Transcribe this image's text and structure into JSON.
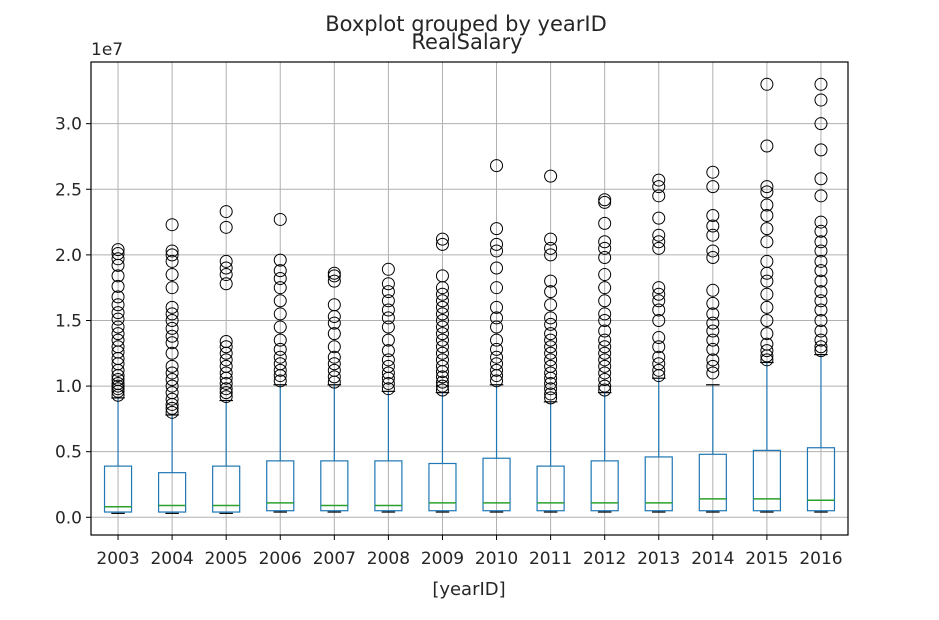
{
  "chart_data": {
    "type": "boxplot",
    "suptitle": "Boxplot grouped by yearID",
    "title": "RealSalary",
    "xlabel": "[yearID]",
    "ylabel": "",
    "y_offset_label": "1e7",
    "y_ticks": [
      0.0,
      0.5,
      1.0,
      1.5,
      2.0,
      2.5,
      3.0
    ],
    "y_tick_labels": [
      "0.0",
      "0.5",
      "1.0",
      "1.5",
      "2.0",
      "2.5",
      "3.0"
    ],
    "ylim": [
      -0.135,
      3.47
    ],
    "grid": true,
    "colors": {
      "box": "#1f77b4",
      "median": "#2ca02c",
      "flier": "#000000",
      "grid": "#b0b0b0"
    },
    "categories": [
      "2003",
      "2004",
      "2005",
      "2006",
      "2007",
      "2008",
      "2009",
      "2010",
      "2011",
      "2012",
      "2013",
      "2014",
      "2015",
      "2016"
    ],
    "boxes": [
      {
        "year": "2003",
        "whislo": 0.03,
        "q1": 0.04,
        "med": 0.08,
        "q3": 0.39,
        "whishi": 0.91,
        "fliers": [
          0.93,
          0.96,
          0.98,
          1.0,
          1.02,
          1.05,
          1.08,
          1.12,
          1.17,
          1.21,
          1.26,
          1.3,
          1.35,
          1.4,
          1.45,
          1.51,
          1.56,
          1.62,
          1.68,
          1.76,
          1.84,
          1.92,
          1.97,
          2.01,
          2.04
        ]
      },
      {
        "year": "2004",
        "whislo": 0.03,
        "q1": 0.04,
        "med": 0.09,
        "q3": 0.34,
        "whishi": 0.78,
        "fliers": [
          0.8,
          0.83,
          0.86,
          0.9,
          0.95,
          1.0,
          1.05,
          1.1,
          1.15,
          1.25,
          1.33,
          1.38,
          1.44,
          1.5,
          1.55,
          1.6,
          1.75,
          1.85,
          1.95,
          2.0,
          2.03,
          2.23
        ]
      },
      {
        "year": "2005",
        "whislo": 0.03,
        "q1": 0.04,
        "med": 0.09,
        "q3": 0.39,
        "whishi": 0.89,
        "fliers": [
          0.92,
          0.95,
          0.98,
          1.02,
          1.06,
          1.1,
          1.15,
          1.2,
          1.25,
          1.3,
          1.34,
          1.78,
          1.85,
          1.9,
          1.95,
          2.21,
          2.33
        ]
      },
      {
        "year": "2006",
        "whislo": 0.04,
        "q1": 0.05,
        "med": 0.11,
        "q3": 0.43,
        "whishi": 1.01,
        "fliers": [
          1.04,
          1.08,
          1.12,
          1.17,
          1.22,
          1.28,
          1.35,
          1.45,
          1.55,
          1.65,
          1.75,
          1.82,
          1.88,
          1.96,
          2.27
        ]
      },
      {
        "year": "2007",
        "whislo": 0.04,
        "q1": 0.05,
        "med": 0.09,
        "q3": 0.43,
        "whishi": 1.01,
        "fliers": [
          1.03,
          1.07,
          1.12,
          1.17,
          1.22,
          1.3,
          1.4,
          1.48,
          1.53,
          1.62,
          1.8,
          1.84,
          1.86
        ]
      },
      {
        "year": "2008",
        "whislo": 0.04,
        "q1": 0.05,
        "med": 0.09,
        "q3": 0.43,
        "whishi": 0.96,
        "fliers": [
          0.98,
          1.02,
          1.06,
          1.1,
          1.15,
          1.2,
          1.27,
          1.35,
          1.45,
          1.52,
          1.58,
          1.65,
          1.72,
          1.78,
          1.89
        ]
      },
      {
        "year": "2009",
        "whislo": 0.04,
        "q1": 0.05,
        "med": 0.11,
        "q3": 0.41,
        "whishi": 0.95,
        "fliers": [
          0.97,
          1.0,
          1.03,
          1.07,
          1.11,
          1.15,
          1.2,
          1.25,
          1.3,
          1.35,
          1.4,
          1.45,
          1.5,
          1.55,
          1.6,
          1.65,
          1.7,
          1.75,
          1.84,
          2.08,
          2.12
        ]
      },
      {
        "year": "2010",
        "whislo": 0.04,
        "q1": 0.05,
        "med": 0.11,
        "q3": 0.45,
        "whishi": 1.01,
        "fliers": [
          1.04,
          1.08,
          1.12,
          1.17,
          1.22,
          1.28,
          1.35,
          1.45,
          1.52,
          1.6,
          1.75,
          1.9,
          2.03,
          2.08,
          2.2,
          2.68
        ]
      },
      {
        "year": "2011",
        "whislo": 0.04,
        "q1": 0.05,
        "med": 0.11,
        "q3": 0.39,
        "whishi": 0.88,
        "fliers": [
          0.91,
          0.94,
          0.98,
          1.02,
          1.06,
          1.1,
          1.15,
          1.2,
          1.25,
          1.3,
          1.35,
          1.4,
          1.47,
          1.52,
          1.62,
          1.72,
          1.8,
          2.0,
          2.05,
          2.12,
          2.6
        ]
      },
      {
        "year": "2012",
        "whislo": 0.04,
        "q1": 0.05,
        "med": 0.11,
        "q3": 0.43,
        "whishi": 0.95,
        "fliers": [
          0.97,
          1.0,
          1.05,
          1.1,
          1.15,
          1.2,
          1.25,
          1.3,
          1.35,
          1.42,
          1.5,
          1.55,
          1.65,
          1.75,
          1.85,
          1.98,
          2.05,
          2.1,
          2.24,
          2.4,
          2.42
        ]
      },
      {
        "year": "2013",
        "whislo": 0.04,
        "q1": 0.05,
        "med": 0.11,
        "q3": 0.46,
        "whishi": 1.06,
        "fliers": [
          1.08,
          1.12,
          1.17,
          1.22,
          1.3,
          1.37,
          1.5,
          1.58,
          1.65,
          1.7,
          1.75,
          2.05,
          2.1,
          2.15,
          2.28,
          2.45,
          2.52,
          2.57
        ]
      },
      {
        "year": "2014",
        "whislo": 0.04,
        "q1": 0.05,
        "med": 0.14,
        "q3": 0.48,
        "whishi": 1.01,
        "fliers": [
          1.1,
          1.15,
          1.2,
          1.28,
          1.35,
          1.42,
          1.48,
          1.55,
          1.63,
          1.73,
          1.98,
          2.03,
          2.15,
          2.22,
          2.3,
          2.52,
          2.63
        ]
      },
      {
        "year": "2015",
        "whislo": 0.04,
        "q1": 0.05,
        "med": 0.14,
        "q3": 0.51,
        "whishi": 1.18,
        "fliers": [
          1.2,
          1.23,
          1.27,
          1.32,
          1.4,
          1.5,
          1.6,
          1.7,
          1.8,
          1.86,
          1.95,
          2.1,
          2.2,
          2.3,
          2.38,
          2.48,
          2.52,
          2.83,
          3.3
        ]
      },
      {
        "year": "2016",
        "whislo": 0.04,
        "q1": 0.05,
        "med": 0.13,
        "q3": 0.53,
        "whishi": 1.24,
        "fliers": [
          1.27,
          1.3,
          1.35,
          1.42,
          1.5,
          1.58,
          1.65,
          1.72,
          1.8,
          1.88,
          1.95,
          2.03,
          2.1,
          2.18,
          2.25,
          2.45,
          2.58,
          2.8,
          3.0,
          3.18,
          3.3
        ]
      }
    ]
  }
}
